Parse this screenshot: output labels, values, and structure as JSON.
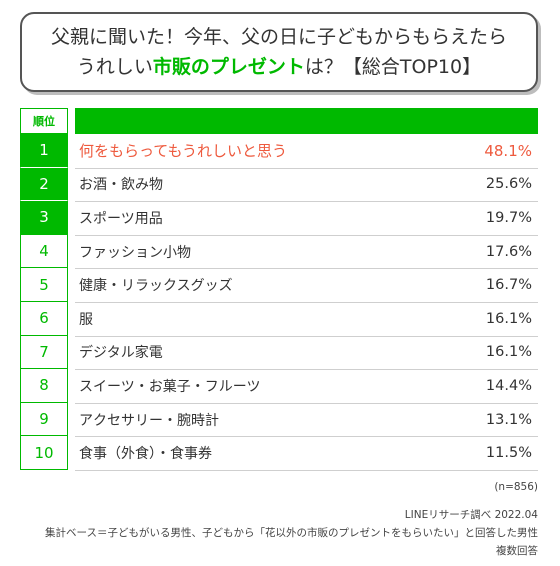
{
  "title": {
    "line1": "父親に聞いた！今年、父の日に子どもからもらえたら",
    "line2_pre": "うれしい",
    "line2_accent": "市販のプレゼント",
    "line2_post": "は？【総合TOP10】"
  },
  "colors": {
    "accent": "#00b900",
    "highlight": "#ee5a3e",
    "text": "#333333"
  },
  "chart_data": {
    "type": "table",
    "header": {
      "rank": "順位"
    },
    "rows": [
      {
        "rank": "1",
        "label": "何をもらってもうれしいと思う",
        "value": 48.1,
        "value_text": "48.1%"
      },
      {
        "rank": "2",
        "label": "お酒・飲み物",
        "value": 25.6,
        "value_text": "25.6%"
      },
      {
        "rank": "3",
        "label": "スポーツ用品",
        "value": 19.7,
        "value_text": "19.7%"
      },
      {
        "rank": "4",
        "label": "ファッション小物",
        "value": 17.6,
        "value_text": "17.6%"
      },
      {
        "rank": "5",
        "label": "健康・リラックスグッズ",
        "value": 16.7,
        "value_text": "16.7%"
      },
      {
        "rank": "6",
        "label": "服",
        "value": 16.1,
        "value_text": "16.1%"
      },
      {
        "rank": "7",
        "label": "デジタル家電",
        "value": 16.1,
        "value_text": "16.1%"
      },
      {
        "rank": "8",
        "label": "スイーツ・お菓子・フルーツ",
        "value": 14.4,
        "value_text": "14.4%"
      },
      {
        "rank": "9",
        "label": "アクセサリー・腕時計",
        "value": 13.1,
        "value_text": "13.1%"
      },
      {
        "rank": "10",
        "label": "食事（外食）・食事券",
        "value": 11.5,
        "value_text": "11.5%"
      }
    ]
  },
  "notes": {
    "sample": "(n=856)",
    "source": "LINEリサーチ調べ 2022.04",
    "base": "集計ベース＝子どもがいる男性、子どもから「花以外の市販のプレゼントをもらいたい」と回答した男性",
    "method": "複数回答"
  }
}
